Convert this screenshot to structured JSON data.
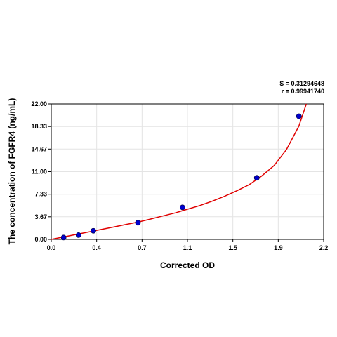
{
  "chart_data": {
    "type": "scatter",
    "xlabel": "Corrected OD",
    "ylabel": "The concentration of FGFR4 (ng/mL)",
    "xlim": [
      0.0,
      2.2
    ],
    "ylim": [
      0.0,
      22.0
    ],
    "x_ticks": [
      "0.0",
      "0.4",
      "0.7",
      "1.1",
      "1.5",
      "1.9",
      "2.2"
    ],
    "x_tick_values": [
      0.0,
      0.3667,
      0.7333,
      1.1,
      1.4667,
      1.8333,
      2.2
    ],
    "y_ticks": [
      "0.00",
      "3.67",
      "7.33",
      "11.00",
      "14.67",
      "18.33",
      "22.00"
    ],
    "y_tick_values": [
      0.0,
      3.67,
      7.33,
      11.0,
      14.67,
      18.33,
      22.0
    ],
    "grid": true,
    "stats": {
      "s": "S = 0.31294648",
      "r": "r = 0.99941740"
    },
    "points": [
      {
        "x": 0.1,
        "y": 0.3
      },
      {
        "x": 0.22,
        "y": 0.7
      },
      {
        "x": 0.34,
        "y": 1.4
      },
      {
        "x": 0.7,
        "y": 2.7
      },
      {
        "x": 1.06,
        "y": 5.2
      },
      {
        "x": 1.66,
        "y": 10.0
      },
      {
        "x": 2.0,
        "y": 20.0
      }
    ],
    "point_color": "#0000cc",
    "curve_color": "#e00000",
    "curve": [
      {
        "x": 0.0,
        "y": 0.0
      },
      {
        "x": 0.1,
        "y": 0.4
      },
      {
        "x": 0.2,
        "y": 0.8
      },
      {
        "x": 0.3,
        "y": 1.2
      },
      {
        "x": 0.4,
        "y": 1.6
      },
      {
        "x": 0.5,
        "y": 2.0
      },
      {
        "x": 0.6,
        "y": 2.4
      },
      {
        "x": 0.7,
        "y": 2.8
      },
      {
        "x": 0.8,
        "y": 3.3
      },
      {
        "x": 0.9,
        "y": 3.8
      },
      {
        "x": 1.0,
        "y": 4.3
      },
      {
        "x": 1.1,
        "y": 4.9
      },
      {
        "x": 1.2,
        "y": 5.5
      },
      {
        "x": 1.3,
        "y": 6.2
      },
      {
        "x": 1.4,
        "y": 7.0
      },
      {
        "x": 1.5,
        "y": 7.9
      },
      {
        "x": 1.6,
        "y": 8.9
      },
      {
        "x": 1.7,
        "y": 10.3
      },
      {
        "x": 1.8,
        "y": 12.0
      },
      {
        "x": 1.9,
        "y": 14.6
      },
      {
        "x": 2.0,
        "y": 18.4
      },
      {
        "x": 2.06,
        "y": 22.0
      }
    ]
  }
}
